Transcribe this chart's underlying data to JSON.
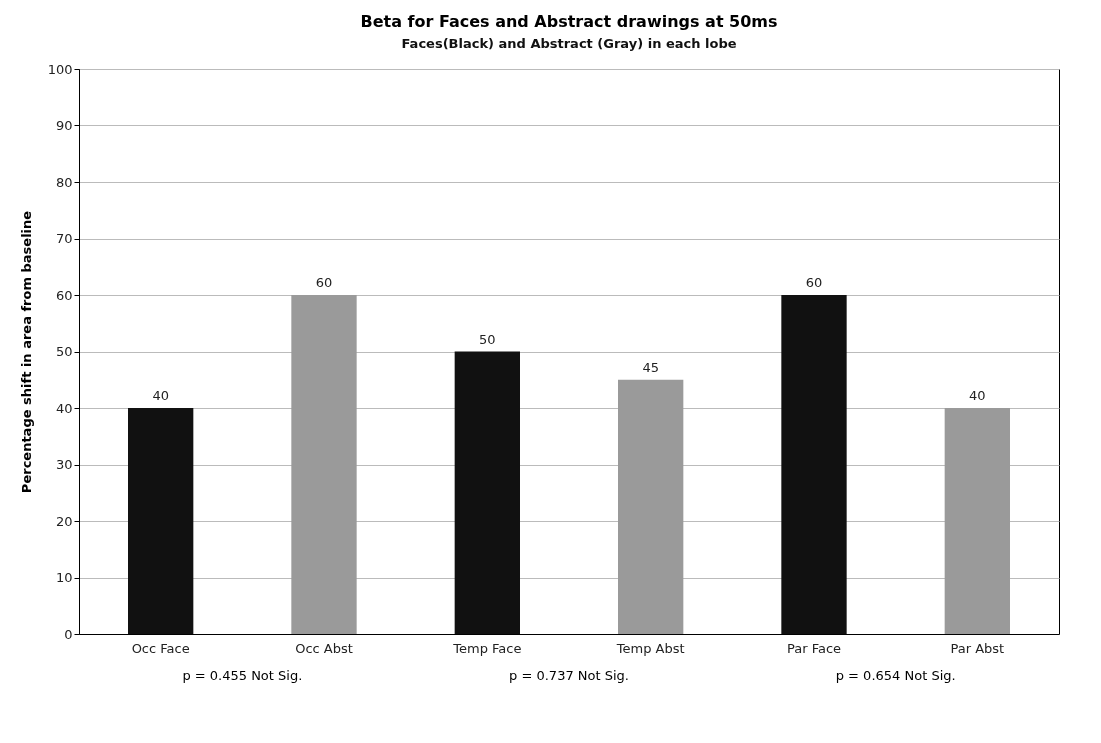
{
  "chart_data": {
    "type": "bar",
    "title": "Beta for Faces and Abstract drawings at 50ms",
    "subtitle": "Faces(Black) and Abstract (Gray) in each lobe",
    "ylabel": "Percentage shift in area from baseline",
    "categories": [
      "Occ Face",
      "Occ Abst",
      "Temp Face",
      "Temp Abst",
      "Par Face",
      "Par Abst"
    ],
    "values": [
      40,
      60,
      50,
      45,
      60,
      40
    ],
    "colors": [
      "#111111",
      "#9a9a9a",
      "#111111",
      "#9a9a9a",
      "#111111",
      "#9a9a9a"
    ],
    "ylim": [
      0,
      100
    ],
    "yticks": [
      0,
      10,
      20,
      30,
      40,
      50,
      60,
      70,
      80,
      90,
      100
    ],
    "grid": "y",
    "data_labels": true,
    "legend": false,
    "annotations": [
      "p = 0.455 Not Sig.",
      "p = 0.737 Not Sig.",
      "p = 0.654 Not Sig."
    ]
  }
}
